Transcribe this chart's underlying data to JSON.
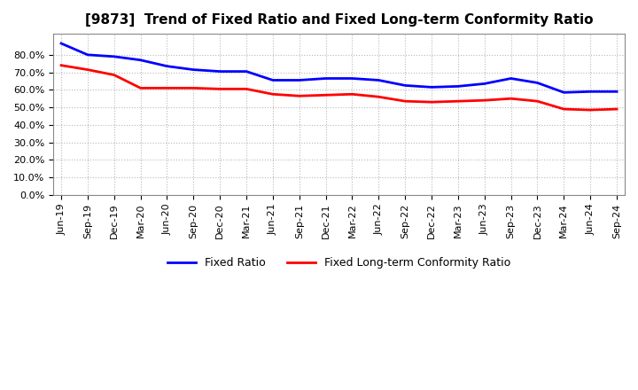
{
  "title": "[9873]  Trend of Fixed Ratio and Fixed Long-term Conformity Ratio",
  "x_labels": [
    "Jun-19",
    "Sep-19",
    "Dec-19",
    "Mar-20",
    "Jun-20",
    "Sep-20",
    "Dec-20",
    "Mar-21",
    "Jun-21",
    "Sep-21",
    "Dec-21",
    "Mar-22",
    "Jun-22",
    "Sep-22",
    "Dec-22",
    "Mar-23",
    "Jun-23",
    "Sep-23",
    "Dec-23",
    "Mar-24",
    "Jun-24",
    "Sep-24"
  ],
  "fixed_ratio": [
    86.5,
    80.0,
    79.0,
    77.0,
    73.5,
    71.5,
    70.5,
    70.5,
    65.5,
    65.5,
    66.5,
    66.5,
    65.5,
    62.5,
    61.5,
    62.0,
    63.5,
    66.5,
    64.0,
    58.5,
    59.0,
    59.0
  ],
  "fixed_lt_ratio": [
    74.0,
    71.5,
    68.5,
    61.0,
    61.0,
    61.0,
    60.5,
    60.5,
    57.5,
    56.5,
    57.0,
    57.5,
    56.0,
    53.5,
    53.0,
    53.5,
    54.0,
    55.0,
    53.5,
    49.0,
    48.5,
    49.0
  ],
  "fixed_ratio_color": "#0000FF",
  "fixed_lt_ratio_color": "#FF0000",
  "ylim_max": 92.0,
  "yticks": [
    0.0,
    10.0,
    20.0,
    30.0,
    40.0,
    50.0,
    60.0,
    70.0,
    80.0
  ],
  "background_color": "#FFFFFF",
  "plot_bg_color": "#FFFFFF",
  "grid_color": "#888888",
  "legend_fixed_ratio": "Fixed Ratio",
  "legend_fixed_lt_ratio": "Fixed Long-term Conformity Ratio",
  "title_fontsize": 11,
  "tick_fontsize": 8,
  "legend_fontsize": 9
}
